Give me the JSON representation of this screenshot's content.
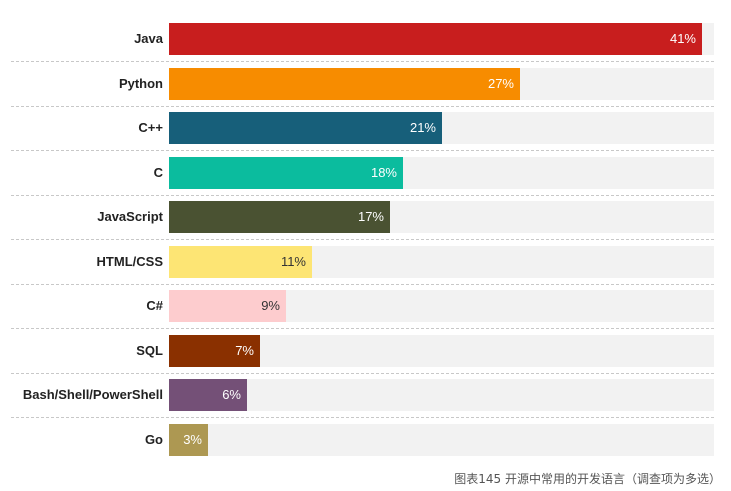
{
  "chart_data": {
    "type": "bar",
    "orientation": "horizontal",
    "title": "",
    "caption": "图表145 开源中常用的开发语言（调查项为多选）",
    "xlabel": "",
    "ylabel": "",
    "xlim": [
      0,
      42
    ],
    "grid": false,
    "legend": "none",
    "categories": [
      "Java",
      "Python",
      "C++",
      "C",
      "JavaScript",
      "HTML/CSS",
      "C#",
      "SQL",
      "Bash/Shell/PowerShell",
      "Go"
    ],
    "values": [
      41,
      27,
      21,
      18,
      17,
      11,
      9,
      7,
      6,
      3
    ],
    "value_labels": [
      "41%",
      "27%",
      "21%",
      "18%",
      "17%",
      "11%",
      "9%",
      "7%",
      "6%",
      "3%"
    ],
    "colors": [
      "#c81e1e",
      "#f78c00",
      "#175f7a",
      "#0bbc9e",
      "#4a5232",
      "#fde574",
      "#fdccce",
      "#8a3000",
      "#745077",
      "#ad9852"
    ]
  },
  "rows": [
    {
      "label": "Java",
      "value": "41%",
      "pct": 41,
      "color": "#c81e1e",
      "text": "light"
    },
    {
      "label": "Python",
      "value": "27%",
      "pct": 27,
      "color": "#f78c00",
      "text": "light"
    },
    {
      "label": "C++",
      "value": "21%",
      "pct": 21,
      "color": "#175f7a",
      "text": "light"
    },
    {
      "label": "C",
      "value": "18%",
      "pct": 18,
      "color": "#0bbc9e",
      "text": "light"
    },
    {
      "label": "JavaScript",
      "value": "17%",
      "pct": 17,
      "color": "#4a5232",
      "text": "light"
    },
    {
      "label": "HTML/CSS",
      "value": "11%",
      "pct": 11,
      "color": "#fde574",
      "text": "dark"
    },
    {
      "label": "C#",
      "value": "9%",
      "pct": 9,
      "color": "#fdccce",
      "text": "dark"
    },
    {
      "label": "SQL",
      "value": "7%",
      "pct": 7,
      "color": "#8a3000",
      "text": "light"
    },
    {
      "label": "Bash/Shell/PowerShell",
      "value": "6%",
      "pct": 6,
      "color": "#745077",
      "text": "light"
    },
    {
      "label": "Go",
      "value": "3%",
      "pct": 3,
      "color": "#ad9852",
      "text": "light"
    }
  ],
  "caption": "图表145 开源中常用的开发语言（调查项为多选）"
}
